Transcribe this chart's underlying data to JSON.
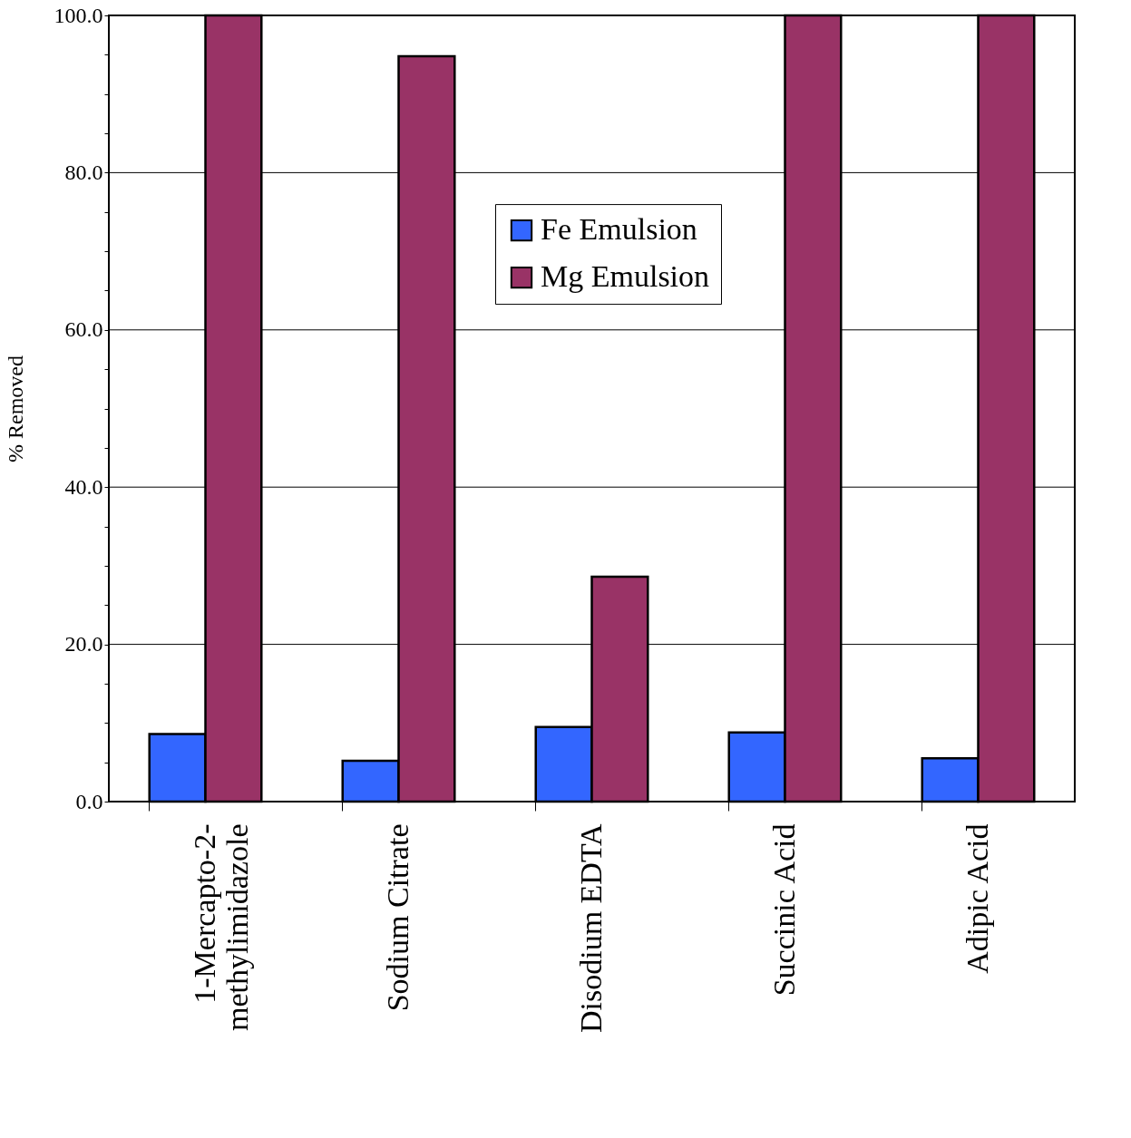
{
  "chart_data": {
    "type": "bar",
    "ylabel": "% Removed",
    "categories": [
      "1-Mercapto-2-\nmethylimidazole",
      "Sodium Citrate",
      "Disodium EDTA",
      "Succinic Acid",
      "Adipic Acid"
    ],
    "series": [
      {
        "name": "Fe Emulsion",
        "color": "#3366ff",
        "values": [
          8.6,
          5.2,
          9.5,
          8.8,
          5.5
        ]
      },
      {
        "name": "Mg Emulsion",
        "color": "#993366",
        "values": [
          100,
          94.8,
          28.6,
          100,
          100
        ]
      }
    ],
    "ylim": [
      0,
      100
    ],
    "yticks": [
      {
        "value": 0,
        "label": "0.0"
      },
      {
        "value": 5,
        "label": null
      },
      {
        "value": 10,
        "label": null
      },
      {
        "value": 15,
        "label": null
      },
      {
        "value": 20,
        "label": "20.0"
      },
      {
        "value": 25,
        "label": null
      },
      {
        "value": 30,
        "label": null
      },
      {
        "value": 35,
        "label": null
      },
      {
        "value": 40,
        "label": "40.0"
      },
      {
        "value": 45,
        "label": null
      },
      {
        "value": 50,
        "label": null
      },
      {
        "value": 55,
        "label": null
      },
      {
        "value": 60,
        "label": "60.0"
      },
      {
        "value": 65,
        "label": null
      },
      {
        "value": 70,
        "label": null
      },
      {
        "value": 75,
        "label": null
      },
      {
        "value": 80,
        "label": "80.0"
      },
      {
        "value": 85,
        "label": null
      },
      {
        "value": 90,
        "label": null
      },
      {
        "value": 95,
        "label": null
      },
      {
        "value": 100,
        "label": "100.0"
      }
    ],
    "grid": "y",
    "legend": "top"
  }
}
